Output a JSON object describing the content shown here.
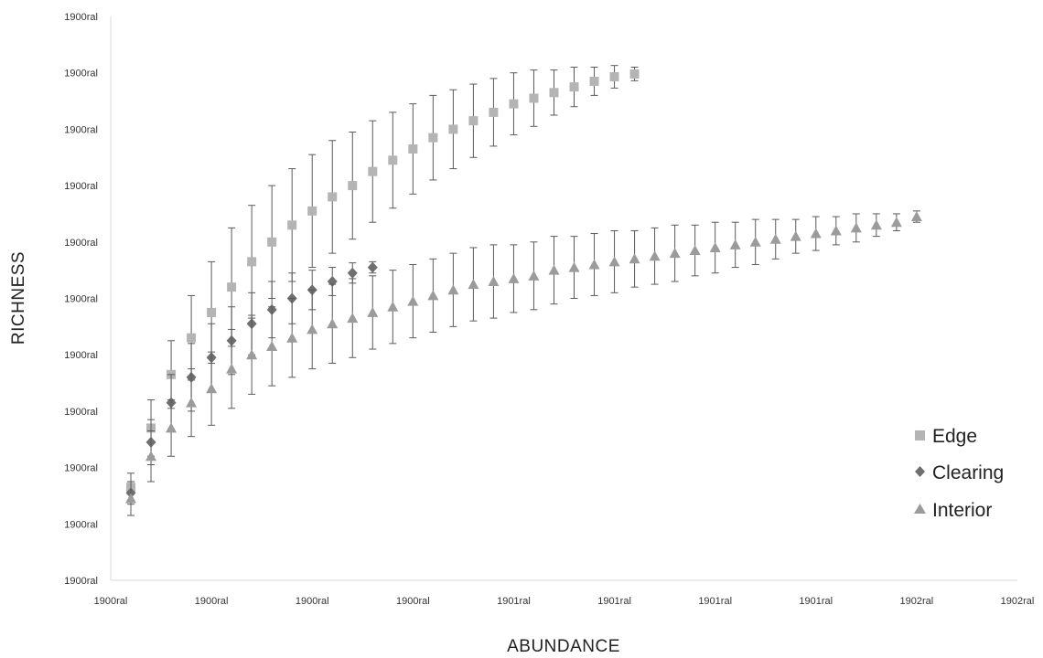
{
  "chart_data": {
    "type": "scatter",
    "xlabel": "ABUNDANCE",
    "ylabel": "RICHNESS",
    "x_tick_labels": [
      "1900ral",
      "1900ral",
      "1900ral",
      "1900ral",
      "1901ral",
      "1901ral",
      "1901ral",
      "1901ral",
      "1902ral",
      "1902ral"
    ],
    "y_tick_labels": [
      "1900ral",
      "1900ral",
      "1900ral",
      "1900ral",
      "1900ral",
      "1900ral",
      "1900ral",
      "1900ral",
      "1900ral",
      "1900ral",
      "1900ral"
    ],
    "xlim": [
      0,
      900
    ],
    "ylim": [
      0,
      100
    ],
    "x_step": 100,
    "y_step": 10,
    "legend_position": "right",
    "grid": false,
    "error_bars": true,
    "series": [
      {
        "name": "Edge",
        "marker": "square",
        "color": "#b4b4b4",
        "x": [
          20,
          40,
          60,
          80,
          100,
          120,
          140,
          160,
          180,
          200,
          220,
          240,
          260,
          280,
          300,
          320,
          340,
          360,
          380,
          400,
          420,
          440,
          460,
          480,
          500,
          520
        ],
        "y": [
          16.5,
          27,
          36.5,
          43,
          47.5,
          52,
          56.5,
          60,
          63,
          65.5,
          68,
          70,
          72.5,
          74.5,
          76.5,
          78.5,
          80,
          81.5,
          83,
          84.5,
          85.5,
          86.5,
          87.5,
          88.5,
          89.3,
          89.8
        ],
        "err": [
          2.5,
          5,
          6,
          7.5,
          9,
          10.5,
          10,
          10,
          10,
          10,
          10,
          9.5,
          9,
          8.5,
          8,
          7.5,
          7,
          6.5,
          6,
          5.5,
          5,
          4,
          3.5,
          2.5,
          2,
          1.2
        ]
      },
      {
        "name": "Clearing",
        "marker": "diamond",
        "color": "#6f6f6f",
        "x": [
          20,
          40,
          60,
          80,
          100,
          120,
          140,
          160,
          180,
          200,
          220,
          240,
          260
        ],
        "y": [
          15.5,
          24.5,
          31.5,
          36,
          39.5,
          42.5,
          45.5,
          48,
          50,
          51.5,
          53,
          54.5,
          55.5
        ],
        "err": [
          2,
          4,
          5,
          6,
          6,
          6,
          5.5,
          5,
          4.5,
          3.5,
          2.5,
          1.8,
          1
        ]
      },
      {
        "name": "Interior",
        "marker": "triangle",
        "color": "#9b9b9b",
        "x": [
          20,
          40,
          60,
          80,
          100,
          120,
          140,
          160,
          180,
          200,
          220,
          240,
          260,
          280,
          300,
          320,
          340,
          360,
          380,
          400,
          420,
          440,
          460,
          480,
          500,
          520,
          540,
          560,
          580,
          600,
          620,
          640,
          660,
          680,
          700,
          720,
          740,
          760,
          780,
          800
        ],
        "y": [
          14.5,
          22,
          27,
          31.5,
          34,
          37.5,
          40,
          41.5,
          43,
          44.5,
          45.5,
          46.5,
          47.5,
          48.5,
          49.5,
          50.5,
          51.5,
          52.5,
          53,
          53.5,
          54,
          55,
          55.5,
          56,
          56.5,
          57,
          57.5,
          58,
          58.5,
          59,
          59.5,
          60,
          60.5,
          61,
          61.5,
          62,
          62.5,
          63,
          63.5,
          64.5
        ],
        "err": [
          3,
          4.5,
          5,
          6,
          6.5,
          7,
          7,
          7,
          7,
          7,
          7,
          7,
          6.5,
          6.5,
          6.5,
          6.5,
          6.5,
          6.5,
          6.5,
          6,
          6,
          6,
          5.5,
          5.5,
          5.5,
          5,
          5,
          5,
          4.5,
          4.5,
          4,
          4,
          3.5,
          3,
          3,
          2.5,
          2.5,
          2,
          1.5,
          1
        ]
      }
    ]
  }
}
